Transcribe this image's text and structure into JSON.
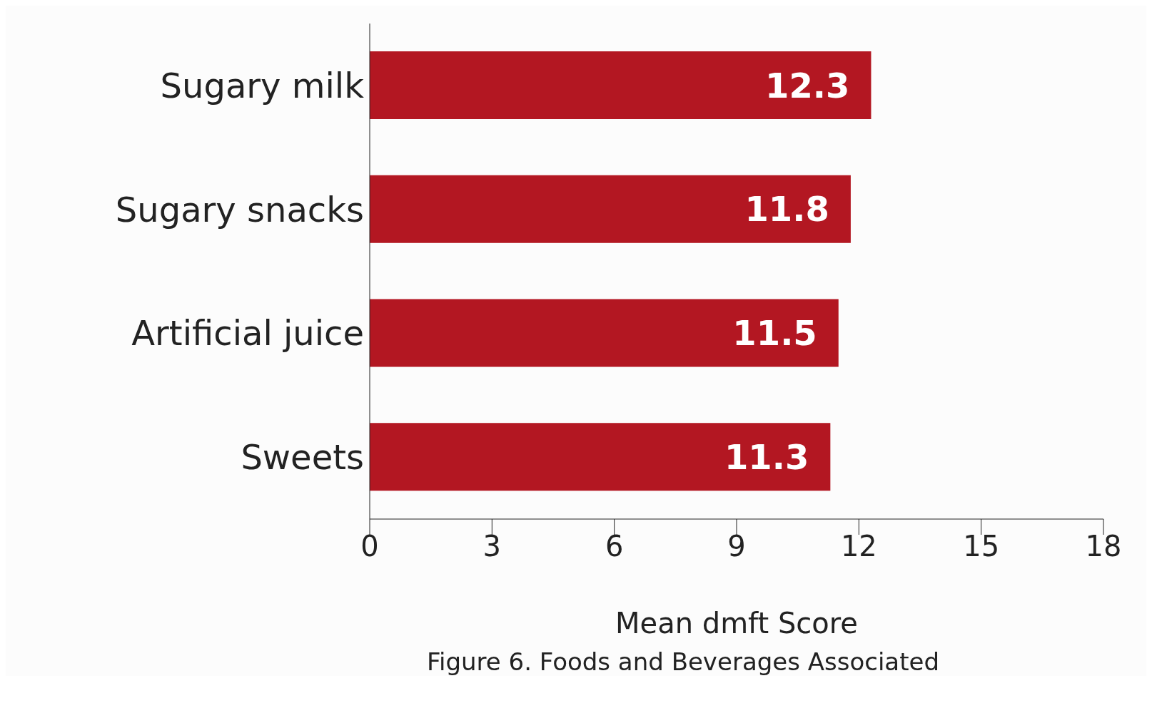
{
  "chart_data": {
    "type": "bar",
    "orientation": "horizontal",
    "categories": [
      "Sugary milk",
      "Sugary snacks",
      "Artificial juice",
      "Sweets"
    ],
    "values": [
      12.3,
      11.8,
      11.5,
      11.3
    ],
    "color": "#b31722",
    "xlabel": "Mean dmft Score",
    "xlim": [
      0,
      18
    ],
    "xticks": [
      0,
      3,
      6,
      9,
      12,
      15,
      18
    ],
    "data_labels": true,
    "annotations": [
      "Figure 6. Foods and Beverages Associated"
    ]
  }
}
